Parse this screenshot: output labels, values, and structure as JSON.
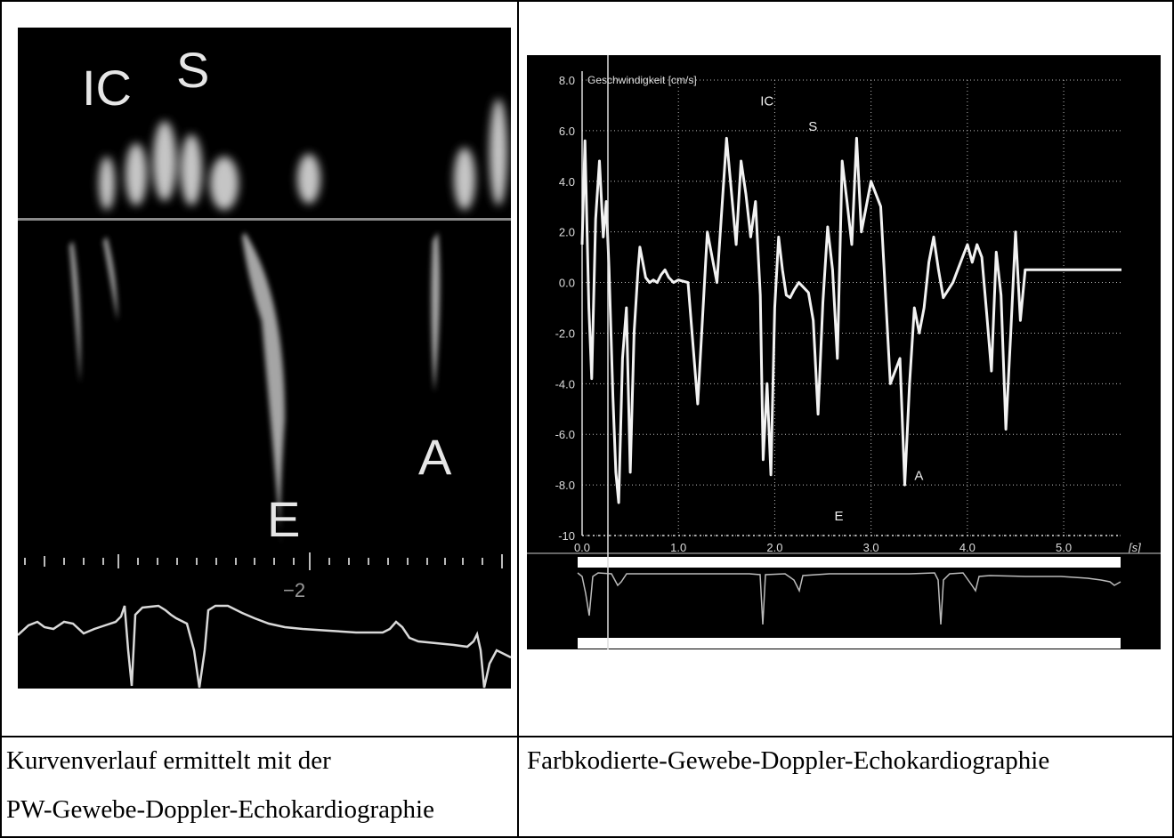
{
  "left_panel": {
    "caption_line1": "Kurvenverlauf ermittelt mit der",
    "caption_line2": "PW-Gewebe-Doppler-Echokardiographie",
    "labels": {
      "ic": "IC",
      "s": "S",
      "e": "E",
      "a": "A",
      "scale_tick": "−2"
    }
  },
  "right_panel": {
    "caption": "Farbkodierte-Gewebe-Doppler-Echokardiographie",
    "chart_data": {
      "type": "line",
      "title": "Geschwindigkeit [cm/s]",
      "xlabel": "[s]",
      "ylabel": "Geschwindigkeit [cm/s]",
      "xlim": [
        0,
        5.6
      ],
      "ylim": [
        -10,
        8
      ],
      "grid": true,
      "x_ticks": [
        "0.0",
        "1.0",
        "2.0",
        "3.0",
        "4.0",
        "5.0"
      ],
      "y_ticks": [
        "8.0",
        "6.0",
        "4.0",
        "2.0",
        "0.0",
        "-2.0",
        "-4.0",
        "-6.0",
        "-8.0",
        "-10"
      ],
      "annotations": [
        {
          "text": "IC",
          "x": 1.85,
          "y": 7.0
        },
        {
          "text": "S",
          "x": 2.35,
          "y": 6.0
        },
        {
          "text": "E",
          "x": 2.62,
          "y": -9.4
        },
        {
          "text": "A",
          "x": 3.45,
          "y": -7.8
        }
      ],
      "series": [
        {
          "x": [
            0.0,
            0.03,
            0.07,
            0.1,
            0.14,
            0.18,
            0.22,
            0.25,
            0.28,
            0.32,
            0.35,
            0.38,
            0.42,
            0.46,
            0.5,
            0.54,
            0.58,
            0.6,
            0.62,
            0.66,
            0.7,
            0.74,
            0.78,
            0.82,
            0.86,
            0.9,
            0.95,
            1.0,
            1.1,
            1.2,
            1.3,
            1.4,
            1.5,
            1.6,
            1.65,
            1.7,
            1.75,
            1.8,
            1.85,
            1.88,
            1.92,
            1.96,
            2.0,
            2.04,
            2.08,
            2.12,
            2.16,
            2.2,
            2.25,
            2.3,
            2.35,
            2.4,
            2.45,
            2.5,
            2.55,
            2.6,
            2.65,
            2.7,
            2.75,
            2.8,
            2.85,
            2.9,
            3.0,
            3.1,
            3.2,
            3.3,
            3.35,
            3.4,
            3.45,
            3.5,
            3.55,
            3.6,
            3.65,
            3.7,
            3.75,
            3.8,
            3.85,
            3.9,
            3.95,
            4.0,
            4.05,
            4.1,
            4.15,
            4.2,
            4.25,
            4.3,
            4.35,
            4.4,
            4.45,
            4.5,
            4.55,
            4.6,
            4.7,
            4.8,
            4.9,
            5.0,
            5.1,
            5.2,
            5.3,
            5.35,
            5.4,
            5.45,
            5.5,
            5.55,
            5.6
          ],
          "y": [
            1.5,
            5.6,
            -1.0,
            -3.8,
            2.5,
            4.8,
            1.8,
            3.2,
            0.5,
            -4.5,
            -7.5,
            -8.7,
            -3.0,
            -1.0,
            -7.5,
            -2.0,
            0.5,
            1.4,
            1.0,
            0.2,
            0.0,
            0.1,
            0.0,
            0.3,
            0.5,
            0.2,
            0.0,
            0.1,
            0.0,
            -4.8,
            2.0,
            0.0,
            5.7,
            1.5,
            4.8,
            3.5,
            1.8,
            3.2,
            -0.5,
            -7.0,
            -4.0,
            -7.6,
            -1.0,
            1.8,
            0.5,
            -0.5,
            -0.6,
            -0.3,
            0.0,
            -0.2,
            -0.4,
            -1.5,
            -5.2,
            -0.8,
            2.2,
            0.5,
            -3.0,
            4.8,
            3.2,
            1.5,
            5.7,
            2.0,
            4.0,
            3.0,
            -4.0,
            -3.0,
            -8.0,
            -4.0,
            -1.0,
            -2.0,
            -1.0,
            0.8,
            1.8,
            0.5,
            -0.6,
            -0.3,
            0.0,
            0.5,
            1.0,
            1.5,
            0.8,
            1.5,
            1.0,
            -1.2,
            -3.5,
            1.2,
            -0.5,
            -5.8,
            -2.0,
            2.0,
            -1.5,
            0.5,
            0.5,
            0.5,
            0.5,
            0.5,
            0.5,
            0.5,
            0.5,
            0.5,
            0.5,
            0.5,
            0.5,
            0.5,
            0.5
          ]
        }
      ]
    }
  }
}
